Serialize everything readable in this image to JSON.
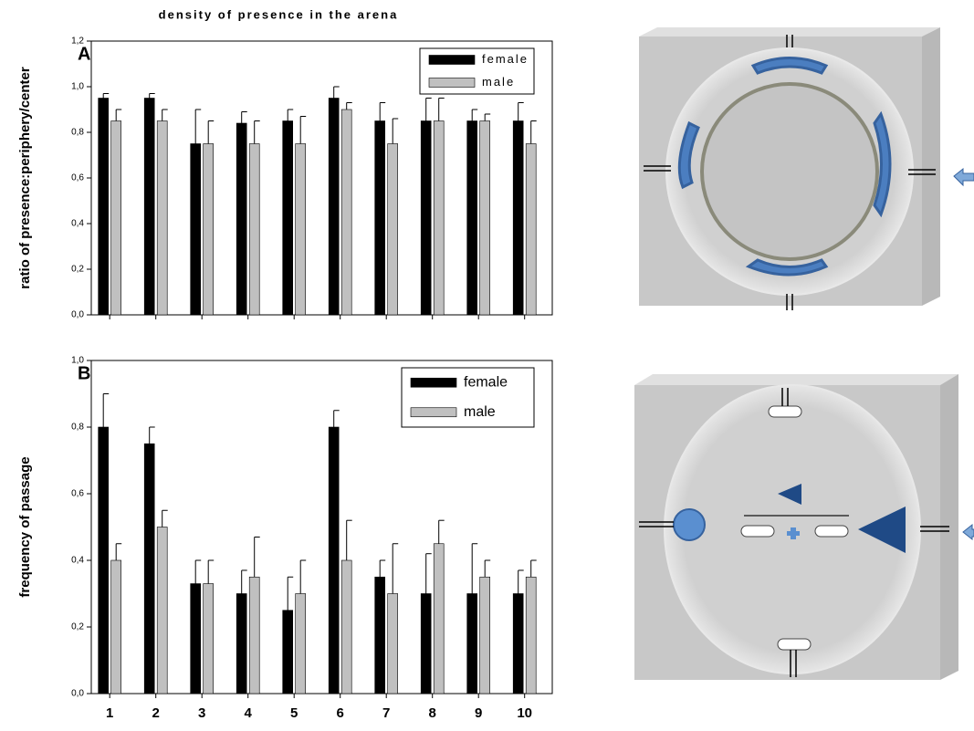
{
  "chart_data": [
    {
      "type": "bar",
      "title": "density of presence in the arena",
      "panel": "A",
      "ylabel": "ratio of presence:periphery/center",
      "ylim": [
        0,
        1.2
      ],
      "yticks": [
        {
          "value": 0,
          "label": "0,0"
        },
        {
          "value": 0.2,
          "label": "0,2"
        },
        {
          "value": 0.4,
          "label": "0,4"
        },
        {
          "value": 0.6,
          "label": "0,6"
        },
        {
          "value": 0.8,
          "label": "0,8"
        },
        {
          "value": 1.0,
          "label": "1,0"
        },
        {
          "value": 1.2,
          "label": "1,2"
        }
      ],
      "legend": "upper right",
      "series": [
        {
          "name": "female",
          "color": "#000000",
          "values": [
            0.95,
            0.95,
            0.75,
            0.84,
            0.85,
            0.95,
            0.85,
            0.85,
            0.85,
            0.85
          ],
          "errors": [
            0.02,
            0.02,
            0.15,
            0.05,
            0.05,
            0.05,
            0.08,
            0.1,
            0.05,
            0.08
          ]
        },
        {
          "name": "male",
          "color": "#c0c0c0",
          "values": [
            0.85,
            0.85,
            0.75,
            0.75,
            0.75,
            0.9,
            0.75,
            0.85,
            0.85,
            0.75
          ],
          "errors": [
            0.05,
            0.05,
            0.1,
            0.1,
            0.12,
            0.03,
            0.11,
            0.1,
            0.03,
            0.1
          ]
        }
      ]
    },
    {
      "type": "bar",
      "panel": "B",
      "ylabel": "frequency of passage",
      "categories": [
        "1",
        "2",
        "3",
        "4",
        "5",
        "6",
        "7",
        "8",
        "9",
        "10"
      ],
      "ylim": [
        0,
        1.0
      ],
      "yticks": [
        {
          "value": 0,
          "label": "0,0"
        },
        {
          "value": 0.2,
          "label": "0,2"
        },
        {
          "value": 0.4,
          "label": "0,4"
        },
        {
          "value": 0.6,
          "label": "0,6"
        },
        {
          "value": 0.8,
          "label": "0,8"
        },
        {
          "value": 1.0,
          "label": "1,0"
        }
      ],
      "legend": "upper right",
      "series": [
        {
          "name": "female",
          "color": "#000000",
          "values": [
            0.8,
            0.75,
            0.33,
            0.3,
            0.25,
            0.8,
            0.35,
            0.3,
            0.3,
            0.3
          ],
          "errors": [
            0.1,
            0.05,
            0.07,
            0.07,
            0.1,
            0.05,
            0.05,
            0.12,
            0.15,
            0.07
          ]
        },
        {
          "name": "male",
          "color": "#c0c0c0",
          "values": [
            0.4,
            0.5,
            0.33,
            0.35,
            0.3,
            0.4,
            0.3,
            0.45,
            0.35,
            0.35
          ],
          "errors": [
            0.05,
            0.05,
            0.07,
            0.12,
            0.1,
            0.12,
            0.15,
            0.07,
            0.05,
            0.05
          ]
        }
      ]
    }
  ]
}
